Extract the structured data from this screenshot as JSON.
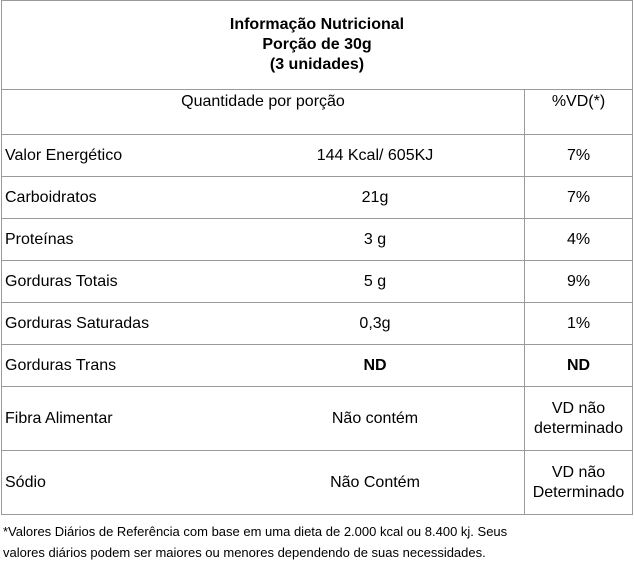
{
  "header": {
    "title": "Informação Nutricional",
    "portion": "Porção de 30g",
    "units": "(3 unidades)"
  },
  "columns": {
    "quantity": "Quantidade por porção",
    "vd": "%VD(*)"
  },
  "rows": [
    {
      "nutrient": "Valor Energético",
      "amount": "144 Kcal/ 605KJ",
      "vd": "7%"
    },
    {
      "nutrient": "Carboidratos",
      "amount": "21g",
      "vd": "7%"
    },
    {
      "nutrient": "Proteínas",
      "amount": "3 g",
      "vd": "4%"
    },
    {
      "nutrient": "Gorduras Totais",
      "amount": "5 g",
      "vd": "9%"
    },
    {
      "nutrient": "Gorduras Saturadas",
      "amount": "0,3g",
      "vd": "1%"
    },
    {
      "nutrient": "Gorduras Trans",
      "amount": "ND",
      "vd": "ND"
    },
    {
      "nutrient": "Fibra Alimentar",
      "amount": "Não contém",
      "vd_line1": "VD não",
      "vd_line2": "determinado"
    },
    {
      "nutrient": "Sódio",
      "amount": "Não Contém",
      "vd_line1": "VD não",
      "vd_line2": "Determinado"
    }
  ],
  "footnote": {
    "line1": "*Valores Diários de Referência com base em uma dieta de 2.000 kcal ou 8.400 kj. Seus",
    "line2": "valores diários podem ser maiores ou menores dependendo de suas necessidades."
  }
}
